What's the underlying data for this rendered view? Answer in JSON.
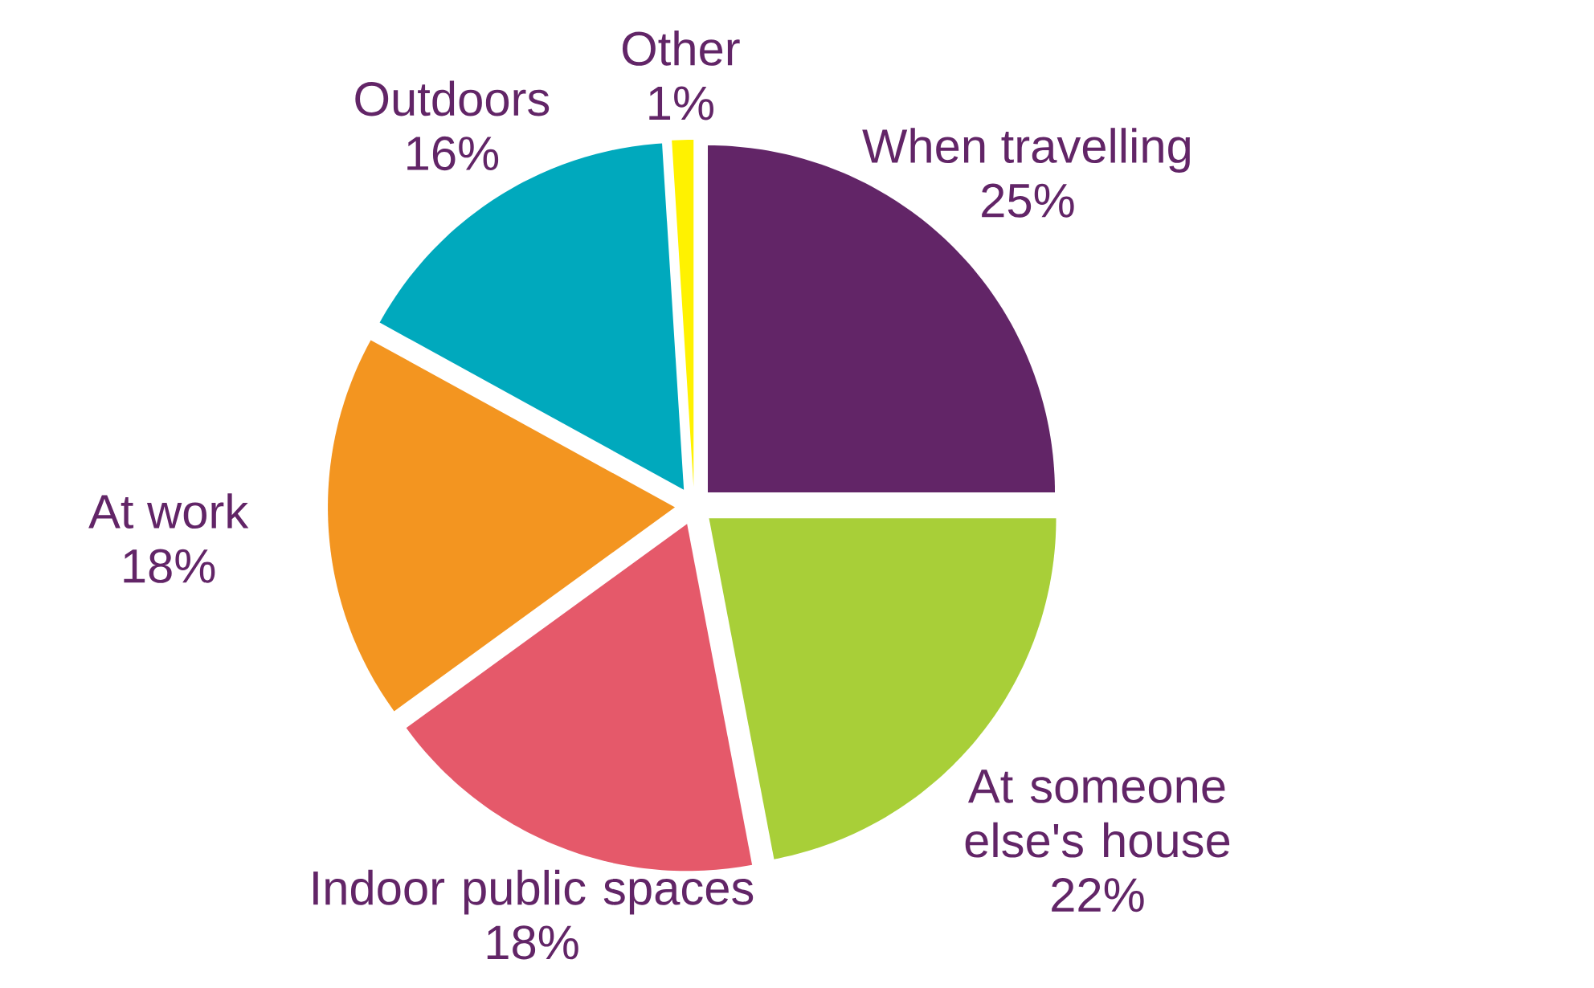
{
  "chart_data": {
    "type": "pie",
    "categories": [
      "When travelling",
      "At someone else's house",
      "Indoor public spaces",
      "At work",
      "Outdoors",
      "Other"
    ],
    "values": [
      25,
      22,
      18,
      18,
      16,
      1
    ],
    "value_labels": [
      "25%",
      "22%",
      "18%",
      "18%",
      "16%",
      "1%"
    ],
    "colors": [
      "#622567",
      "#a8cf38",
      "#e5596a",
      "#f39520",
      "#00a9bd",
      "#fff200"
    ]
  }
}
